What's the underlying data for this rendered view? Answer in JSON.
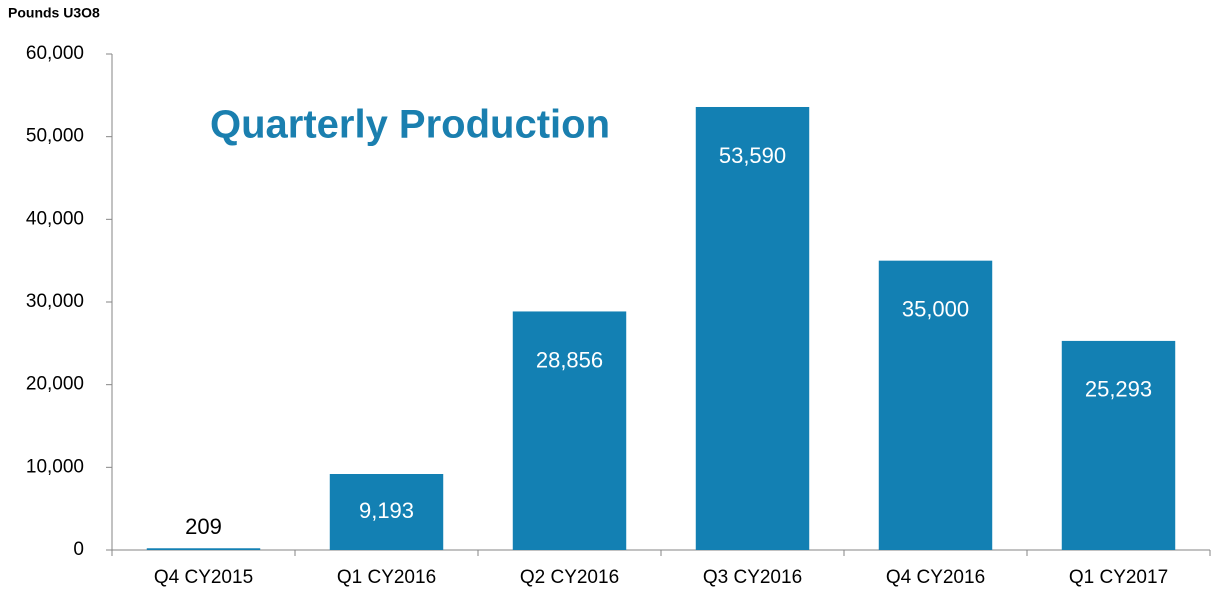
{
  "chart_data": {
    "type": "bar",
    "title": "Quarterly Production",
    "y_label": "Pounds U3O8",
    "categories": [
      "Q4 CY2015",
      "Q1 CY2016",
      "Q2 CY2016",
      "Q3 CY2016",
      "Q4 CY2016",
      "Q1 CY2017"
    ],
    "values": [
      209,
      9193,
      28856,
      53590,
      35000,
      25293
    ],
    "value_labels": [
      "209",
      "9,193",
      "28,856",
      "53,590",
      "35,000",
      "25,293"
    ],
    "color": "#1380b3",
    "ylim": [
      0,
      60000
    ],
    "yticks": [
      0,
      {
        "value": 10000,
        "label": "10,000"
      },
      {
        "value": 20000,
        "label": "20,000"
      },
      {
        "value": 30000,
        "label": "30,000"
      },
      {
        "value": 40000,
        "label": "40,000"
      },
      {
        "value": 50000,
        "label": "50,000"
      },
      {
        "value": 60000,
        "label": "60,000"
      }
    ],
    "grid": false
  }
}
